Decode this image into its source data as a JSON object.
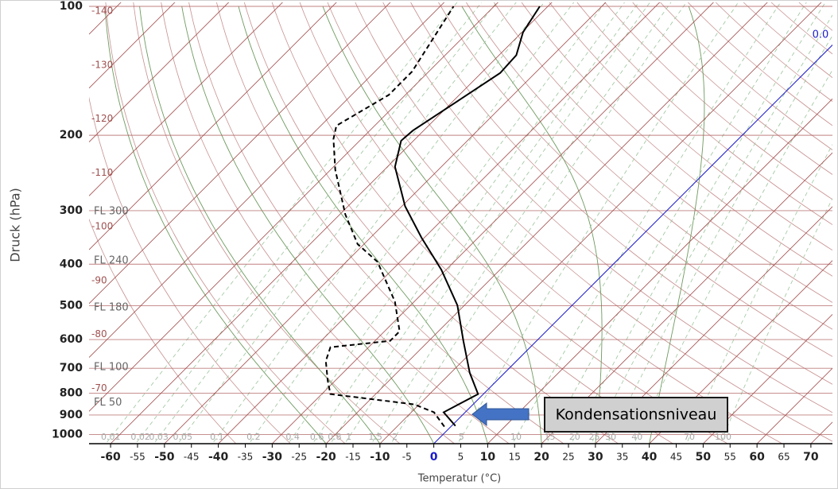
{
  "chart_data": {
    "type": "skewt",
    "x_label": "Temperatur (°C)",
    "y_label": "Druck (hPa)",
    "xlim": [
      -64,
      74
    ],
    "ylim": [
      1050,
      100
    ],
    "y_log": true,
    "xticks": [
      -60,
      -55,
      -50,
      -45,
      -40,
      -35,
      -30,
      -25,
      -20,
      -15,
      -10,
      -5,
      0,
      5,
      10,
      15,
      20,
      25,
      30,
      35,
      40,
      45,
      50,
      55,
      60,
      65,
      70
    ],
    "yticks": [
      100,
      200,
      300,
      400,
      500,
      600,
      700,
      800,
      900,
      1000
    ],
    "zero_color": "#1a1acc",
    "series": [
      {
        "color": "#000000",
        "dash": false,
        "pressure": [
          954,
          887,
          804,
          717,
          604,
          499,
          412,
          347,
          293,
          237,
          206,
          195,
          165,
          143,
          130,
          115,
          100
        ],
        "values": [
          0.7,
          -4.0,
          -1.0,
          -6.5,
          -13.6,
          -21.3,
          -30.9,
          -40.5,
          -49.4,
          -58.6,
          -62.3,
          -62.0,
          -59.0,
          -56.5,
          -56.8,
          -59.8,
          -61.5
        ]
      },
      {
        "color": "#000000",
        "dash": true,
        "pressure": [
          958,
          887,
          850,
          804,
          748,
          673,
          625,
          604,
          574,
          489,
          395,
          359,
          306,
          241,
          204,
          190,
          161,
          142,
          100
        ],
        "values": [
          -1.2,
          -5.8,
          -10.9,
          -28.4,
          -31.4,
          -35.4,
          -37.1,
          -27.2,
          -27.2,
          -33.6,
          -44.2,
          -51.2,
          -59.0,
          -69.1,
          -75.2,
          -77.1,
          -73.1,
          -73.1,
          -77.5
        ]
      }
    ],
    "isotherm_labels": [
      -140,
      -130,
      -120,
      -110,
      -100,
      -90,
      -80,
      -70
    ],
    "flight_levels": [
      {
        "label": "FL 300",
        "pressure": 301
      },
      {
        "label": "FL 240",
        "pressure": 393
      },
      {
        "label": "FL 180",
        "pressure": 506
      },
      {
        "label": "FL 100",
        "pressure": 697
      },
      {
        "label": "FL 50",
        "pressure": 843
      }
    ],
    "mixing_ratios": [
      0.01,
      0.02,
      0.03,
      0.05,
      0.1,
      0.2,
      0.4,
      0.6,
      0.8,
      1,
      1.5,
      2,
      5,
      10,
      15,
      20,
      25,
      30,
      40,
      70,
      100
    ],
    "freezing_level_label": "0.0",
    "annotation": "Kondensationsniveau"
  }
}
